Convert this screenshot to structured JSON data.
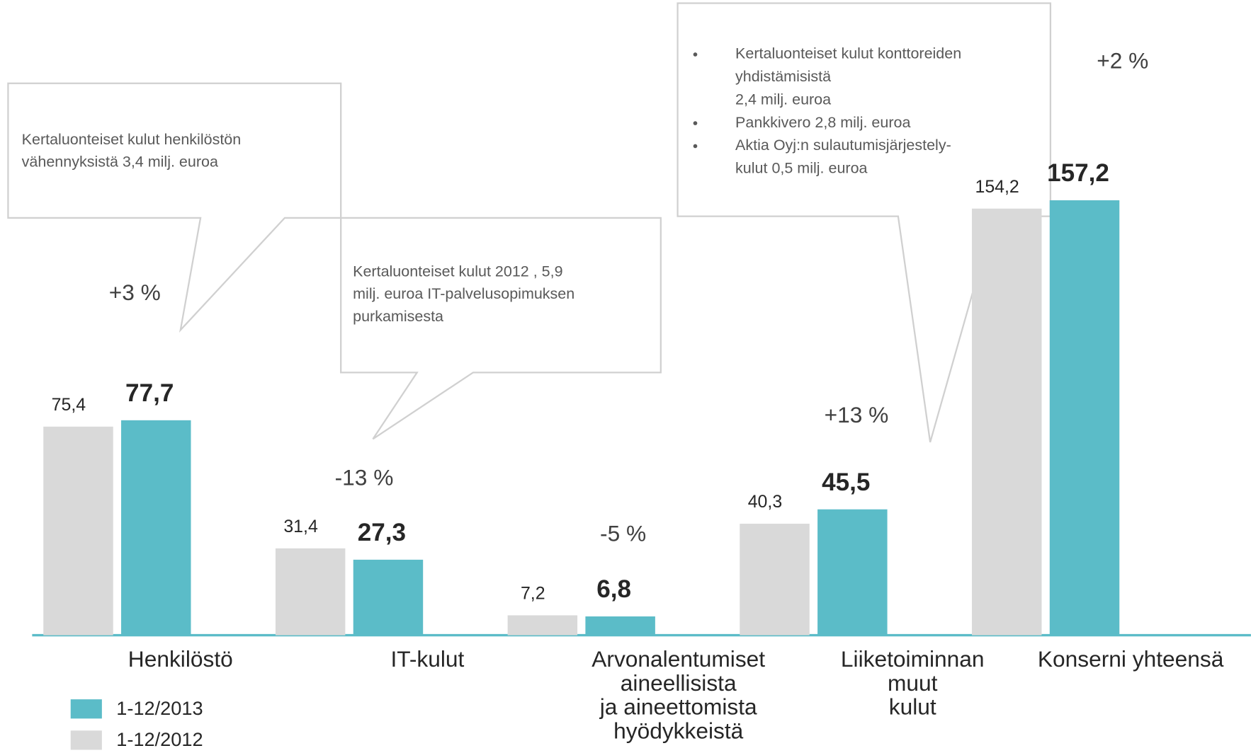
{
  "chart_data": {
    "type": "bar",
    "categories": [
      "Henkilöstö",
      "IT-kulut",
      "Arvonalentumiset\naineellisista\nja aineettomista\nhyödykkeistä",
      "Liiketoiminnan\nmuut\nkulut",
      "Konserni yhteensä"
    ],
    "series": [
      {
        "name": "1-12/2012",
        "color": "#d9d9d9",
        "values": [
          75.4,
          31.4,
          7.2,
          40.3,
          154.2
        ],
        "value_labels": [
          "75,4",
          "31,4",
          "7,2",
          "40,3",
          "154,2"
        ]
      },
      {
        "name": "1-12/2013",
        "color": "#5bbcc8",
        "values": [
          77.7,
          27.3,
          6.8,
          45.5,
          157.2
        ],
        "value_labels": [
          "77,7",
          "27,3",
          "6,8",
          "45,5",
          "157,2"
        ]
      }
    ],
    "changes": [
      "+3 %",
      "-13 %",
      "-5 %",
      "+13 %",
      "+2 %"
    ],
    "callouts": [
      {
        "items": [
          [
            "Kertaluonteiset kulut  henkilöstön",
            "vähennyksistä 3,4 milj. euroa"
          ]
        ]
      },
      {
        "items": [
          [
            "Kertaluonteiset kulut  2012 , 5,9",
            "milj. euroa IT-palvelusopimuksen",
            "purkamisesta"
          ]
        ]
      },
      {
        "items": [
          [
            "Kertaluonteiset kulut konttoreiden",
            "yhdistämisistä",
            "2,4 milj. euroa"
          ],
          [
            "Pankkivero 2,8 milj. euroa"
          ],
          [
            "Aktia Oyj:n sulautumisjärjestely-",
            "kulut 0,5 milj. euroa"
          ]
        ]
      }
    ]
  }
}
